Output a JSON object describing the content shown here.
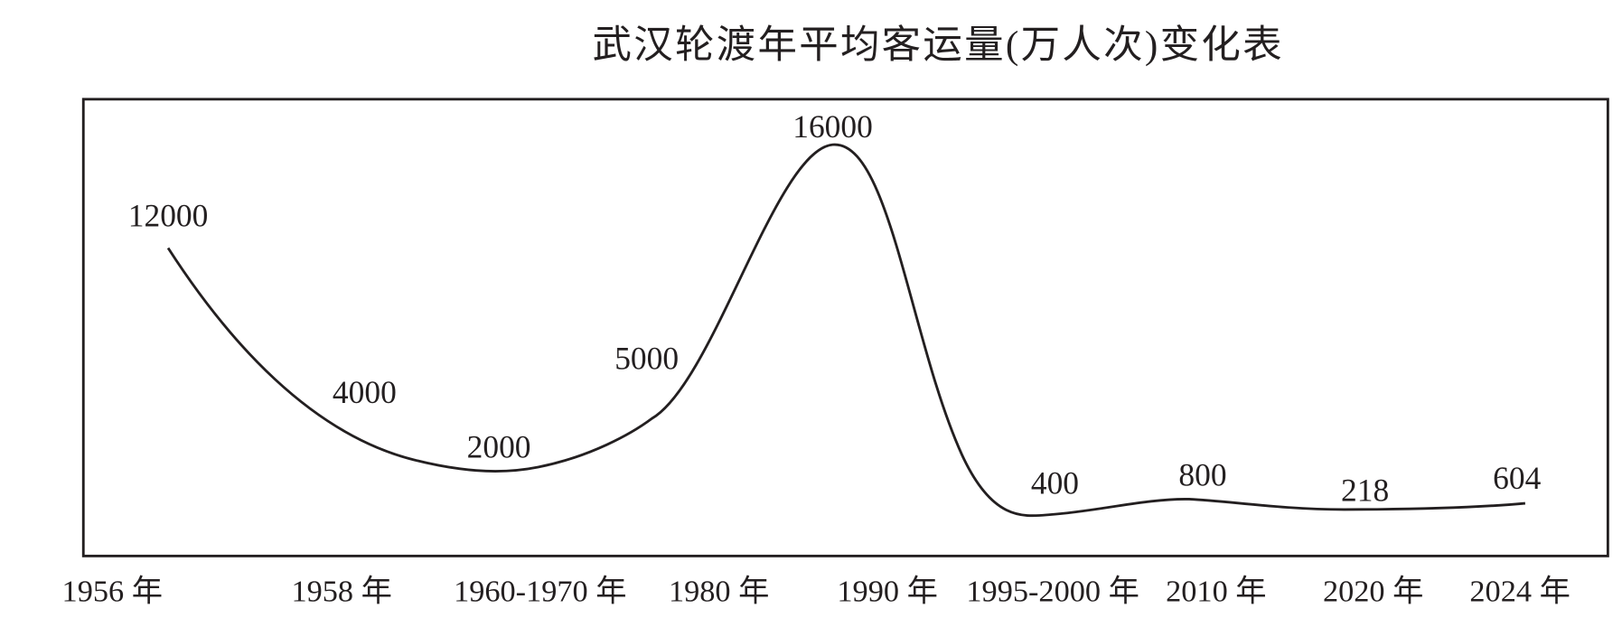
{
  "chart_data": {
    "type": "line",
    "title": "武汉轮渡年平均客运量(万人次)变化表",
    "xlabel": "",
    "ylabel": "",
    "categories": [
      "1956 年",
      "1958 年",
      "1960-1970 年",
      "1980 年",
      "1990 年",
      "1995-2000 年",
      "2010 年",
      "2020 年",
      "2024 年"
    ],
    "values": [
      12000,
      4000,
      2000,
      5000,
      16000,
      400,
      800,
      218,
      604
    ],
    "data_labels": [
      "12000",
      "4000",
      "2000",
      "5000",
      "16000",
      "400",
      "800",
      "218",
      "604"
    ],
    "grid": false,
    "legend": "none",
    "line_color": "#231f20"
  }
}
